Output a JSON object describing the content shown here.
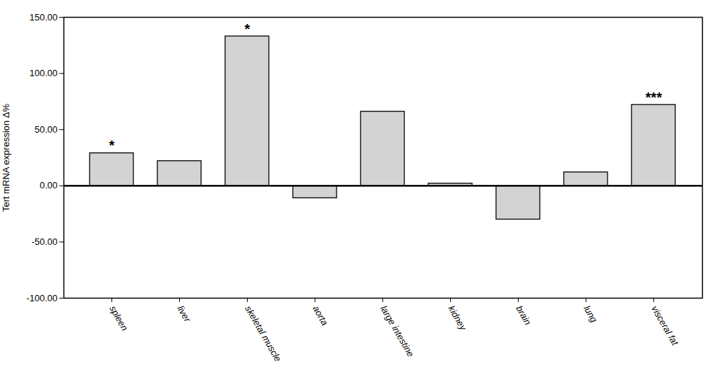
{
  "chart_data": {
    "type": "bar",
    "ylabel": "Tert mRNA expression Δ%",
    "categories": [
      "spleen",
      "liver",
      "skeletal muscle",
      "aorta",
      "large intestine",
      "kidney",
      "brain",
      "lung",
      "visceral fat"
    ],
    "values": [
      29.0,
      22.0,
      133.0,
      -11.0,
      66.0,
      2.0,
      -30.0,
      12.0,
      72.0
    ],
    "color": "#d3d3d3",
    "ylim": [
      -100,
      150
    ],
    "yticks": [
      {
        "value": -100,
        "label": "-100.00"
      },
      {
        "value": -50,
        "label": "-50.00"
      },
      {
        "value": 0,
        "label": "0.00"
      },
      {
        "value": 50,
        "label": "50.00"
      },
      {
        "value": 100,
        "label": "100.00"
      },
      {
        "value": 150,
        "label": "150.00"
      }
    ],
    "grid": false,
    "annotations": [
      {
        "category": "spleen",
        "text": "*"
      },
      {
        "category": "skeletal muscle",
        "text": "*"
      },
      {
        "category": "visceral fat",
        "text": "***"
      }
    ]
  }
}
